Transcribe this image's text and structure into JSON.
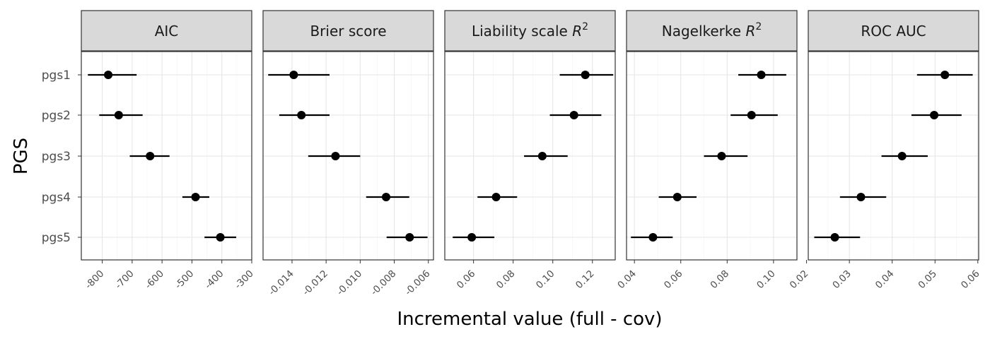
{
  "chart_data": {
    "type": "scatter",
    "subtype": "faceted point-range (dot with horizontal interval)",
    "xlabel": "Incremental value (full - cov)",
    "ylabel": "PGS",
    "categories": [
      "pgs1",
      "pgs2",
      "pgs3",
      "pgs4",
      "pgs5"
    ],
    "grid": true,
    "legend": "none",
    "point_color": "#000000",
    "facets": [
      {
        "title": "AIC",
        "xlim": [
          -870,
          -300
        ],
        "xticks": [
          -800,
          -700,
          -600,
          -500,
          -400,
          -300
        ],
        "xtick_labels": [
          "-800",
          "-700",
          "-600",
          "-500",
          "-400",
          "-300"
        ],
        "values": [
          -780,
          -745,
          -640,
          -488,
          -405
        ],
        "lower": [
          -848,
          -810,
          -708,
          -532,
          -458
        ],
        "upper": [
          -685,
          -665,
          -575,
          -442,
          -352
        ]
      },
      {
        "title": "Brier score",
        "xlim": [
          -0.0157,
          -0.0057
        ],
        "xticks": [
          -0.014,
          -0.012,
          -0.01,
          -0.008,
          -0.006
        ],
        "xtick_labels": [
          "-0.014",
          "-0.012",
          "-0.010",
          "-0.008",
          "-0.006"
        ],
        "values": [
          -0.0139,
          -0.01345,
          -0.01145,
          -0.00848,
          -0.0071
        ],
        "lower": [
          -0.0154,
          -0.01475,
          -0.01305,
          -0.00965,
          -0.00845
        ],
        "upper": [
          -0.0118,
          -0.0118,
          -0.01,
          -0.00712,
          -0.00605
        ]
      },
      {
        "title_text": "Liability scale ",
        "title_var": "R",
        "title_sup": "2",
        "xlim": [
          0.0455,
          0.1315
        ],
        "xticks": [
          0.06,
          0.08,
          0.1,
          0.12
        ],
        "xtick_labels": [
          "0.06",
          "0.08",
          "0.10",
          "0.12"
        ],
        "values": [
          0.1164,
          0.1107,
          0.0947,
          0.0714,
          0.0591
        ],
        "lower": [
          0.1035,
          0.0985,
          0.0855,
          0.062,
          0.0495
        ],
        "upper": [
          0.1305,
          0.1245,
          0.1075,
          0.082,
          0.0705
        ]
      },
      {
        "title_text": "Nagelkerke ",
        "title_var": "R",
        "title_sup": "2",
        "xlim": [
          0.0366,
          0.1101
        ],
        "xticks": [
          0.04,
          0.06,
          0.08,
          0.1
        ],
        "xtick_labels": [
          "0.04",
          "0.06",
          "0.08",
          "0.10"
        ],
        "values": [
          0.0947,
          0.0905,
          0.0776,
          0.0585,
          0.048
        ],
        "lower": [
          0.0848,
          0.0815,
          0.07,
          0.0505,
          0.0385
        ],
        "upper": [
          0.1055,
          0.1018,
          0.0888,
          0.0668,
          0.0565
        ]
      },
      {
        "title": "ROC AUC",
        "xlim": [
          0.0204,
          0.0602
        ],
        "xticks": [
          0.02,
          0.03,
          0.04,
          0.05,
          0.06
        ],
        "xtick_labels": [
          "0.02",
          "0.03",
          "0.04",
          "0.05",
          "0.06"
        ],
        "values": [
          0.0523,
          0.0498,
          0.0423,
          0.0327,
          0.0266
        ],
        "lower": [
          0.0458,
          0.0445,
          0.0375,
          0.0278,
          0.0218
        ],
        "upper": [
          0.0588,
          0.0562,
          0.0483,
          0.0386,
          0.0325
        ]
      }
    ]
  }
}
